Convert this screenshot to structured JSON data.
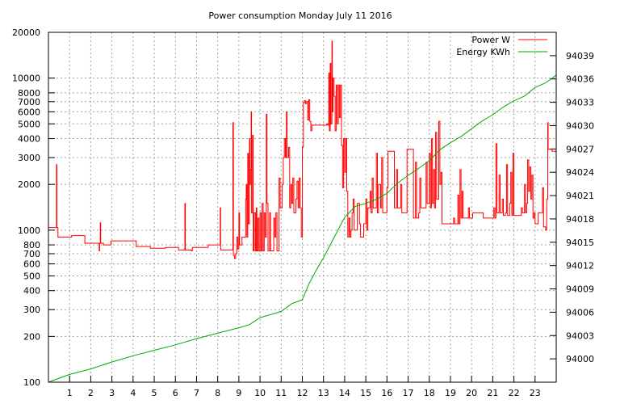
{
  "chart_data": {
    "type": "line",
    "title": "Power consumption Monday July 11 2016",
    "xlabel": "",
    "ylabel": "",
    "x_range": [
      0,
      24
    ],
    "x_ticks": [
      1,
      2,
      3,
      4,
      5,
      6,
      7,
      8,
      9,
      10,
      11,
      12,
      13,
      14,
      15,
      16,
      17,
      18,
      19,
      20,
      21,
      22,
      23
    ],
    "y_left": {
      "scale": "log",
      "range": [
        100,
        20000
      ],
      "ticks": [
        100,
        200,
        300,
        400,
        500,
        600,
        700,
        800,
        1000,
        2000,
        3000,
        4000,
        5000,
        6000,
        7000,
        8000,
        10000,
        20000
      ]
    },
    "y_right": {
      "scale": "linear",
      "range": [
        93997,
        94042
      ],
      "ticks": [
        94000,
        94003,
        94006,
        94009,
        94012,
        94015,
        94018,
        94021,
        94024,
        94027,
        94030,
        94033,
        94036,
        94039
      ]
    },
    "grid": true,
    "legend_position": "top-right",
    "series": [
      {
        "name": "Power W",
        "axis": "left",
        "color": "#ff0000",
        "step": true,
        "points": [
          [
            0.0,
            1040
          ],
          [
            0.35,
            1040
          ],
          [
            0.38,
            2700
          ],
          [
            0.4,
            1040
          ],
          [
            0.45,
            900
          ],
          [
            1.0,
            900
          ],
          [
            1.1,
            920
          ],
          [
            1.7,
            920
          ],
          [
            1.72,
            820
          ],
          [
            2.35,
            820
          ],
          [
            2.4,
            730
          ],
          [
            2.42,
            820
          ],
          [
            2.45,
            1120
          ],
          [
            2.47,
            820
          ],
          [
            2.6,
            800
          ],
          [
            2.9,
            800
          ],
          [
            2.95,
            850
          ],
          [
            4.1,
            850
          ],
          [
            4.15,
            780
          ],
          [
            4.8,
            780
          ],
          [
            4.82,
            760
          ],
          [
            5.5,
            760
          ],
          [
            5.52,
            770
          ],
          [
            6.1,
            770
          ],
          [
            6.15,
            740
          ],
          [
            6.4,
            740
          ],
          [
            6.45,
            1500
          ],
          [
            6.47,
            740
          ],
          [
            6.75,
            730
          ],
          [
            6.8,
            770
          ],
          [
            7.5,
            770
          ],
          [
            7.55,
            800
          ],
          [
            8.1,
            800
          ],
          [
            8.12,
            1400
          ],
          [
            8.14,
            740
          ],
          [
            8.7,
            740
          ],
          [
            8.72,
            5100
          ],
          [
            8.74,
            680
          ],
          [
            8.8,
            650
          ],
          [
            8.85,
            700
          ],
          [
            8.9,
            900
          ],
          [
            8.95,
            750
          ],
          [
            9.0,
            1300
          ],
          [
            9.03,
            800
          ],
          [
            9.1,
            800
          ],
          [
            9.15,
            900
          ],
          [
            9.3,
            900
          ],
          [
            9.32,
            1600
          ],
          [
            9.35,
            2000
          ],
          [
            9.38,
            900
          ],
          [
            9.42,
            3200
          ],
          [
            9.45,
            1100
          ],
          [
            9.5,
            4000
          ],
          [
            9.52,
            2000
          ],
          [
            9.55,
            2500
          ],
          [
            9.58,
            6000
          ],
          [
            9.6,
            1300
          ],
          [
            9.65,
            4200
          ],
          [
            9.68,
            730
          ],
          [
            9.72,
            1300
          ],
          [
            9.78,
            730
          ],
          [
            9.82,
            1400
          ],
          [
            9.85,
            730
          ],
          [
            9.9,
            1200
          ],
          [
            9.95,
            730
          ],
          [
            10.0,
            1300
          ],
          [
            10.05,
            730
          ],
          [
            10.1,
            1500
          ],
          [
            10.15,
            730
          ],
          [
            10.2,
            1300
          ],
          [
            10.25,
            900
          ],
          [
            10.3,
            5800
          ],
          [
            10.33,
            1500
          ],
          [
            10.38,
            730
          ],
          [
            10.45,
            1300
          ],
          [
            10.5,
            730
          ],
          [
            10.6,
            730
          ],
          [
            10.65,
            1200
          ],
          [
            10.7,
            900
          ],
          [
            10.75,
            1300
          ],
          [
            10.8,
            730
          ],
          [
            10.9,
            2200
          ],
          [
            10.95,
            1400
          ],
          [
            11.0,
            1400
          ],
          [
            11.05,
            2000
          ],
          [
            11.1,
            3000
          ],
          [
            11.15,
            4000
          ],
          [
            11.2,
            3000
          ],
          [
            11.25,
            6000
          ],
          [
            11.28,
            3000
          ],
          [
            11.35,
            3500
          ],
          [
            11.4,
            1400
          ],
          [
            11.45,
            2000
          ],
          [
            11.5,
            1500
          ],
          [
            11.55,
            2200
          ],
          [
            11.6,
            1300
          ],
          [
            11.7,
            1600
          ],
          [
            11.75,
            2100
          ],
          [
            11.8,
            1400
          ],
          [
            11.85,
            2200
          ],
          [
            11.9,
            1400
          ],
          [
            11.95,
            900
          ],
          [
            12.0,
            3500
          ],
          [
            12.05,
            6900
          ],
          [
            12.1,
            7100
          ],
          [
            12.15,
            6800
          ],
          [
            12.2,
            7000
          ],
          [
            12.25,
            5300
          ],
          [
            12.3,
            7200
          ],
          [
            12.35,
            5200
          ],
          [
            12.4,
            4500
          ],
          [
            12.45,
            4900
          ],
          [
            13.1,
            4900
          ],
          [
            13.15,
            5000
          ],
          [
            13.2,
            4900
          ],
          [
            13.25,
            10800
          ],
          [
            13.28,
            4500
          ],
          [
            13.32,
            12500
          ],
          [
            13.35,
            5000
          ],
          [
            13.4,
            17500
          ],
          [
            13.42,
            6000
          ],
          [
            13.45,
            10000
          ],
          [
            13.5,
            7600
          ],
          [
            13.55,
            4500
          ],
          [
            13.6,
            9000
          ],
          [
            13.65,
            5000
          ],
          [
            13.7,
            9000
          ],
          [
            13.75,
            5500
          ],
          [
            13.8,
            9000
          ],
          [
            13.85,
            3600
          ],
          [
            13.9,
            1900
          ],
          [
            13.95,
            4000
          ],
          [
            14.0,
            2400
          ],
          [
            14.05,
            4000
          ],
          [
            14.1,
            1800
          ],
          [
            14.15,
            900
          ],
          [
            14.2,
            1200
          ],
          [
            14.25,
            900
          ],
          [
            14.3,
            1000
          ],
          [
            14.35,
            1300
          ],
          [
            14.4,
            1600
          ],
          [
            14.45,
            1000
          ],
          [
            14.55,
            1000
          ],
          [
            14.6,
            1500
          ],
          [
            14.7,
            1100
          ],
          [
            14.75,
            900
          ],
          [
            14.85,
            900
          ],
          [
            14.9,
            1100
          ],
          [
            15.0,
            1600
          ],
          [
            15.05,
            1000
          ],
          [
            15.1,
            1400
          ],
          [
            15.2,
            1800
          ],
          [
            15.25,
            1300
          ],
          [
            15.3,
            2200
          ],
          [
            15.35,
            1400
          ],
          [
            15.45,
            1400
          ],
          [
            15.5,
            3200
          ],
          [
            15.55,
            1300
          ],
          [
            15.6,
            2000
          ],
          [
            15.7,
            1400
          ],
          [
            15.75,
            3000
          ],
          [
            15.8,
            1300
          ],
          [
            15.9,
            1300
          ],
          [
            16.0,
            1900
          ],
          [
            16.05,
            3300
          ],
          [
            16.3,
            3300
          ],
          [
            16.35,
            1400
          ],
          [
            16.4,
            1400
          ],
          [
            16.45,
            2500
          ],
          [
            16.5,
            1400
          ],
          [
            16.6,
            1400
          ],
          [
            16.65,
            2000
          ],
          [
            16.7,
            1300
          ],
          [
            16.9,
            1300
          ],
          [
            16.95,
            3400
          ],
          [
            17.2,
            3400
          ],
          [
            17.25,
            1200
          ],
          [
            17.35,
            2800
          ],
          [
            17.4,
            1200
          ],
          [
            17.5,
            1300
          ],
          [
            17.55,
            2200
          ],
          [
            17.6,
            1400
          ],
          [
            17.8,
            1400
          ],
          [
            17.85,
            2800
          ],
          [
            17.9,
            1500
          ],
          [
            18.0,
            3200
          ],
          [
            18.05,
            1400
          ],
          [
            18.1,
            4000
          ],
          [
            18.15,
            1500
          ],
          [
            18.2,
            2500
          ],
          [
            18.25,
            1400
          ],
          [
            18.3,
            4400
          ],
          [
            18.35,
            1600
          ],
          [
            18.45,
            5200
          ],
          [
            18.5,
            2000
          ],
          [
            18.55,
            2400
          ],
          [
            18.6,
            1100
          ],
          [
            19.1,
            1100
          ],
          [
            19.15,
            1200
          ],
          [
            19.2,
            1100
          ],
          [
            19.3,
            1100
          ],
          [
            19.35,
            1700
          ],
          [
            19.4,
            1100
          ],
          [
            19.45,
            2500
          ],
          [
            19.5,
            1200
          ],
          [
            19.55,
            1800
          ],
          [
            19.6,
            1200
          ],
          [
            19.8,
            1200
          ],
          [
            19.85,
            1400
          ],
          [
            19.9,
            1200
          ],
          [
            20.0,
            1200
          ],
          [
            20.05,
            1300
          ],
          [
            20.5,
            1300
          ],
          [
            20.55,
            1200
          ],
          [
            21.0,
            1200
          ],
          [
            21.05,
            1400
          ],
          [
            21.1,
            1200
          ],
          [
            21.15,
            3700
          ],
          [
            21.2,
            1300
          ],
          [
            21.3,
            2300
          ],
          [
            21.35,
            1300
          ],
          [
            21.45,
            1600
          ],
          [
            21.5,
            1250
          ],
          [
            21.6,
            1300
          ],
          [
            21.65,
            2700
          ],
          [
            21.7,
            1250
          ],
          [
            21.8,
            1500
          ],
          [
            21.85,
            2400
          ],
          [
            21.9,
            1250
          ],
          [
            21.95,
            3200
          ],
          [
            22.0,
            1250
          ],
          [
            22.3,
            1250
          ],
          [
            22.35,
            1400
          ],
          [
            22.4,
            1300
          ],
          [
            22.5,
            2000
          ],
          [
            22.55,
            1300
          ],
          [
            22.6,
            1500
          ],
          [
            22.65,
            2900
          ],
          [
            22.7,
            1800
          ],
          [
            22.75,
            2600
          ],
          [
            22.8,
            1600
          ],
          [
            22.85,
            2300
          ],
          [
            22.9,
            1200
          ],
          [
            22.95,
            1300
          ],
          [
            23.0,
            1100
          ],
          [
            23.1,
            1100
          ],
          [
            23.15,
            1300
          ],
          [
            23.3,
            1300
          ],
          [
            23.35,
            1900
          ],
          [
            23.4,
            1050
          ],
          [
            23.5,
            1000
          ],
          [
            23.55,
            1600
          ],
          [
            23.6,
            5100
          ],
          [
            23.62,
            3400
          ],
          [
            23.8,
            3300
          ],
          [
            23.99,
            3300
          ]
        ]
      },
      {
        "name": "Energy KWh",
        "axis": "right",
        "color": "#00aa00",
        "step": false,
        "points": [
          [
            0,
            93997.0
          ],
          [
            1,
            93998.0
          ],
          [
            2,
            93998.7
          ],
          [
            3,
            93999.6
          ],
          [
            4,
            94000.4
          ],
          [
            5,
            94001.1
          ],
          [
            6,
            94001.8
          ],
          [
            7,
            94002.6
          ],
          [
            8,
            94003.3
          ],
          [
            9,
            94004.0
          ],
          [
            9.5,
            94004.4
          ],
          [
            10,
            94005.3
          ],
          [
            10.5,
            94005.7
          ],
          [
            11,
            94006.1
          ],
          [
            11.5,
            94007.1
          ],
          [
            12,
            94007.6
          ],
          [
            12.3,
            94009.6
          ],
          [
            12.7,
            94011.6
          ],
          [
            13,
            94013.0
          ],
          [
            13.5,
            94015.6
          ],
          [
            14,
            94018.2
          ],
          [
            14.5,
            94019.6
          ],
          [
            15,
            94020.0
          ],
          [
            15.5,
            94020.5
          ],
          [
            16,
            94021.3
          ],
          [
            16.5,
            94022.6
          ],
          [
            17,
            94023.6
          ],
          [
            17.5,
            94024.5
          ],
          [
            18,
            94025.5
          ],
          [
            18.5,
            94026.9
          ],
          [
            19,
            94027.8
          ],
          [
            19.5,
            94028.6
          ],
          [
            20,
            94029.6
          ],
          [
            20.5,
            94030.6
          ],
          [
            21,
            94031.4
          ],
          [
            21.5,
            94032.4
          ],
          [
            22,
            94033.2
          ],
          [
            22.5,
            94033.8
          ],
          [
            23,
            94034.9
          ],
          [
            23.5,
            94035.5
          ],
          [
            24,
            94036.5
          ]
        ]
      }
    ]
  }
}
